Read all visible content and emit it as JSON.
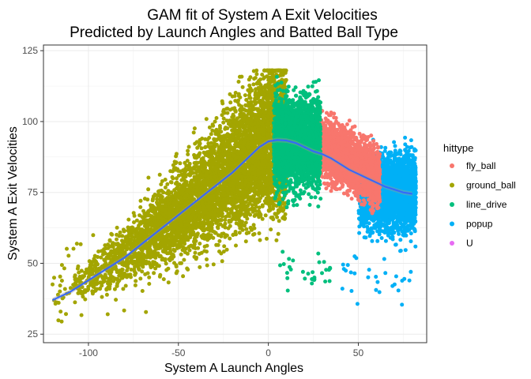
{
  "chart_data": {
    "type": "scatter",
    "title": [
      "GAM fit of System A Exit Velocities",
      "Predicted by Launch Angles and Batted Ball Type"
    ],
    "xlabel": "System A Launch Angles",
    "ylabel": "System A Exit Velocities",
    "xlim": [
      -125,
      88
    ],
    "ylim": [
      22,
      127
    ],
    "x_ticks": [
      -100,
      -50,
      0,
      50
    ],
    "y_ticks": [
      25,
      50,
      75,
      100,
      125
    ],
    "grid": true,
    "legend": {
      "title": "hittype",
      "position": "right",
      "entries": [
        {
          "label": "fly_ball",
          "color": "#F8766D"
        },
        {
          "label": "ground_ball",
          "color": "#A3A500"
        },
        {
          "label": "line_drive",
          "color": "#00BF7D"
        },
        {
          "label": "popup",
          "color": "#00B0F6"
        },
        {
          "label": "U",
          "color": "#E76BF3"
        }
      ]
    },
    "series": [
      {
        "name": "ground_ball",
        "color": "#A3A500",
        "x_range": [
          -120,
          10
        ],
        "density": "dense"
      },
      {
        "name": "line_drive",
        "color": "#00BF7D",
        "x_range": [
          5,
          30
        ],
        "density": "dense"
      },
      {
        "name": "fly_ball",
        "color": "#F8766D",
        "x_range": [
          25,
          62
        ],
        "density": "dense"
      },
      {
        "name": "popup",
        "color": "#00B0F6",
        "x_range": [
          50,
          85
        ],
        "density": "dense"
      },
      {
        "name": "U",
        "color": "#E76BF3",
        "x_range": [],
        "density": "none"
      }
    ],
    "smooth_line": {
      "color": "#3366FF",
      "x": [
        -120,
        -110,
        -100,
        -90,
        -80,
        -70,
        -60,
        -50,
        -40,
        -30,
        -20,
        -10,
        -5,
        0,
        5,
        10,
        15,
        20,
        25,
        30,
        35,
        40,
        45,
        50,
        55,
        60,
        65,
        70,
        75,
        80
      ],
      "y": [
        37,
        40,
        44,
        48,
        52,
        57,
        62,
        67,
        72,
        77,
        82,
        88,
        91,
        93,
        93.5,
        93.3,
        92.5,
        91,
        89.5,
        88.5,
        87,
        85,
        83,
        81.5,
        80,
        78.5,
        77,
        76,
        75,
        74.5
      ]
    }
  }
}
